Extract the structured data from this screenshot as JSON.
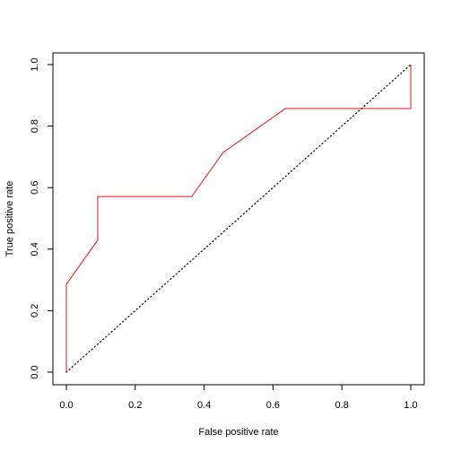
{
  "chart_data": {
    "type": "line",
    "title": "",
    "xlabel": "False positive rate",
    "ylabel": "True positive rate",
    "xlim": [
      0,
      1
    ],
    "ylim": [
      0,
      1
    ],
    "x_ticks": [
      0.0,
      0.2,
      0.4,
      0.6,
      0.8,
      1.0
    ],
    "x_tick_labels": [
      "0.0",
      "0.2",
      "0.4",
      "0.6",
      "0.8",
      "1.0"
    ],
    "y_ticks": [
      0.0,
      0.2,
      0.4,
      0.6,
      0.8,
      1.0
    ],
    "y_tick_labels": [
      "0.0",
      "0.2",
      "0.4",
      "0.6",
      "0.8",
      "1.0"
    ],
    "grid": false,
    "legend": "none",
    "series": [
      {
        "color": "#e8161a",
        "style": "solid",
        "x": [
          0.0,
          0.0,
          0.091,
          0.091,
          0.364,
          0.455,
          0.636,
          1.0,
          1.0
        ],
        "y": [
          0.0,
          0.286,
          0.429,
          0.571,
          0.571,
          0.714,
          0.857,
          0.857,
          1.0
        ]
      },
      {
        "color": "#000000",
        "style": "dotted",
        "x": [
          0.0,
          1.0
        ],
        "y": [
          0.0,
          1.0
        ]
      }
    ]
  }
}
